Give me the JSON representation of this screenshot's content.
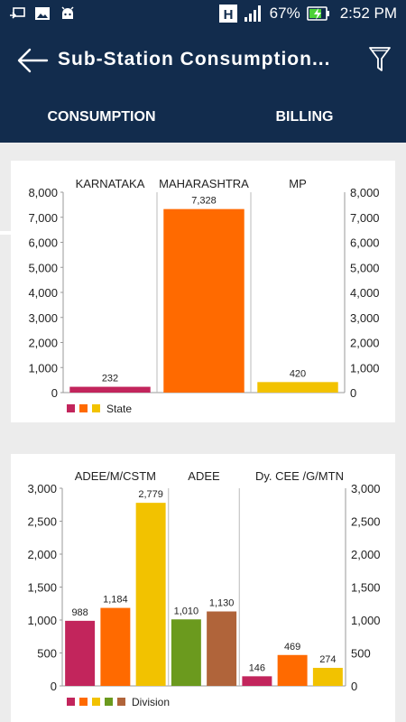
{
  "status_bar": {
    "battery": "67%",
    "time": "2:52 PM",
    "network_badge": "H",
    "icons": [
      "cast-icon",
      "image-icon",
      "android-icon",
      "h-network-icon",
      "signal-icon",
      "battery-charging-icon"
    ]
  },
  "app_bar": {
    "title": "Sub-Station Consumption...",
    "back_icon": "arrow-left-icon",
    "filter_icon": "filter-icon"
  },
  "tabs": [
    {
      "label": "CONSUMPTION",
      "selected": true
    },
    {
      "label": "BILLING",
      "selected": false
    }
  ],
  "chart_data": [
    {
      "type": "bar",
      "categories": [
        "KARNATAKA",
        "MAHARASHTRA",
        "MP"
      ],
      "values": [
        232,
        7328,
        420
      ],
      "data_labels": [
        "232",
        "7,328",
        "420"
      ],
      "colors": [
        "#c2255c",
        "#ff6a00",
        "#f2c200"
      ],
      "ylim": [
        0,
        8000
      ],
      "yticks": [
        "0",
        "1,000",
        "2,000",
        "3,000",
        "4,000",
        "5,000",
        "6,000",
        "7,000",
        "8,000"
      ],
      "legend": "State",
      "legend_placement": "bottom-left",
      "grid": "vertical separators between categories"
    },
    {
      "type": "bar",
      "groups": [
        "ADEE/M/CSTM",
        "ADEE",
        "Dy. CEE /G/MTN"
      ],
      "values": [
        988,
        1184,
        2779,
        1010,
        1130,
        146,
        469,
        274
      ],
      "data_labels": [
        "988",
        "1,184",
        "2,779",
        "1,010",
        "1,130",
        "146",
        "469",
        "274"
      ],
      "colors": [
        "#c2255c",
        "#ff6a00",
        "#f2c200",
        "#6b9a1e",
        "#b0643a",
        "#c2255c",
        "#ff6a00",
        "#f2c200"
      ],
      "ylim": [
        0,
        3000
      ],
      "yticks": [
        "0",
        "500",
        "1,000",
        "1,500",
        "2,000",
        "2,500",
        "3,000"
      ],
      "legend": "Division",
      "legend_colors": [
        "#c2255c",
        "#ff6a00",
        "#f2c200",
        "#6b9a1e",
        "#b0643a"
      ],
      "legend_placement": "bottom-left",
      "grid": "vertical separators between groups"
    }
  ]
}
